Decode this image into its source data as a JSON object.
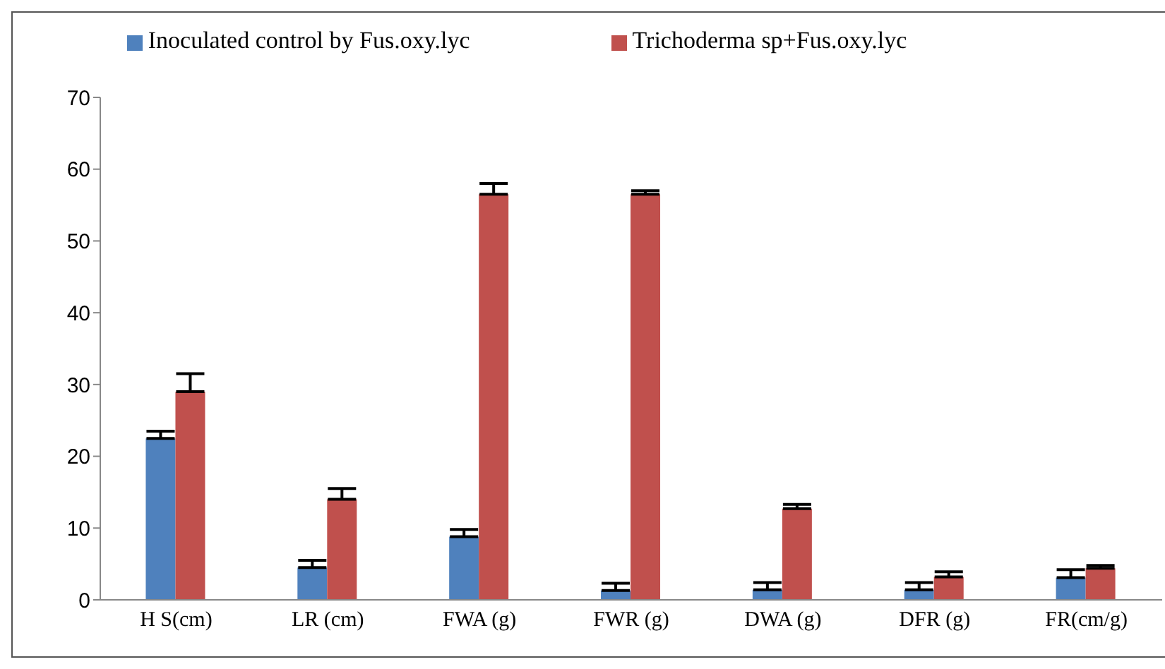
{
  "chart_data": {
    "type": "bar",
    "categories": [
      "H S(cm)",
      "LR (cm)",
      "FWA (g)",
      "FWR (g)",
      "DWA (g)",
      "DFR (g)",
      "FR(cm/g)"
    ],
    "series": [
      {
        "name": "Inoculated control by Fus.oxy.lyc",
        "color": "#4f81bd",
        "values": [
          22.5,
          4.5,
          8.8,
          1.3,
          1.4,
          1.4,
          3.1
        ],
        "errors": [
          [
            22.5,
            23.5
          ],
          [
            4.5,
            5.5
          ],
          [
            8.8,
            9.8
          ],
          [
            1.3,
            2.3
          ],
          [
            1.4,
            2.4
          ],
          [
            1.4,
            2.4
          ],
          [
            3.1,
            4.2
          ]
        ]
      },
      {
        "name": "Trichoderma sp+Fus.oxy.lyc",
        "color": "#c0504d",
        "values": [
          29,
          14,
          56.5,
          56.5,
          12.7,
          3.2,
          4.4
        ],
        "errors": [
          [
            29,
            31.5
          ],
          [
            14,
            15.5
          ],
          [
            56.5,
            58
          ],
          [
            56.5,
            57
          ],
          [
            12.7,
            13.3
          ],
          [
            3.2,
            3.9
          ],
          [
            4.4,
            4.8
          ]
        ]
      }
    ],
    "ylim": [
      0,
      70
    ],
    "yticks": [
      0,
      10,
      20,
      30,
      40,
      50,
      60,
      70
    ],
    "grid": false,
    "legend": "top"
  }
}
